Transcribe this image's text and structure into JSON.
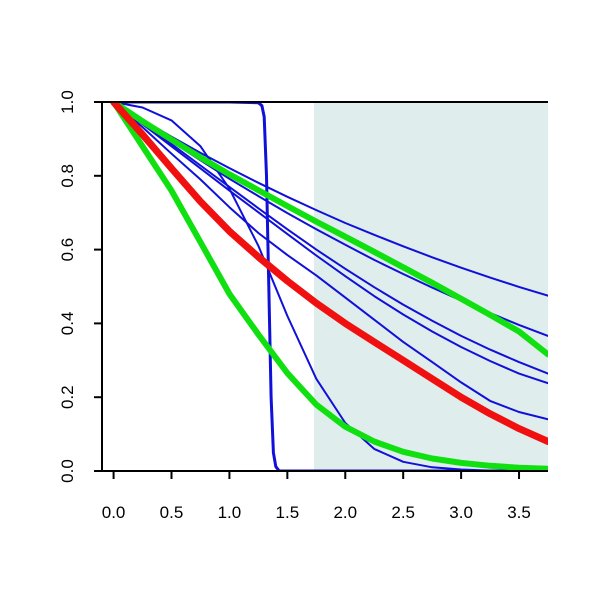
{
  "chart_data": {
    "type": "line",
    "title": "",
    "xlabel": "",
    "ylabel": "",
    "xlim": [
      -0.1,
      3.75
    ],
    "ylim": [
      0.0,
      1.0
    ],
    "grid": false,
    "shaded_region": {
      "x_from": 1.73,
      "x_to": 3.75,
      "color": "#e0eded"
    },
    "x_ticks": [
      "0.0",
      "0.5",
      "1.0",
      "1.5",
      "2.0",
      "2.5",
      "3.0",
      "3.5"
    ],
    "y_ticks": [
      "0.0",
      "0.2",
      "0.4",
      "0.6",
      "0.8",
      "1.0"
    ],
    "series": [
      {
        "color": "#1010d8",
        "width": 2,
        "points": [
          [
            0,
            1.0
          ],
          [
            0.25,
            0.952
          ],
          [
            0.5,
            0.906
          ],
          [
            0.75,
            0.862
          ],
          [
            1.0,
            0.821
          ],
          [
            1.25,
            0.781
          ],
          [
            1.5,
            0.743
          ],
          [
            1.75,
            0.707
          ],
          [
            2.0,
            0.672
          ],
          [
            2.25,
            0.64
          ],
          [
            2.5,
            0.609
          ],
          [
            2.75,
            0.579
          ],
          [
            3.0,
            0.551
          ],
          [
            3.25,
            0.524
          ],
          [
            3.5,
            0.499
          ],
          [
            3.75,
            0.475
          ]
        ]
      },
      {
        "color": "#1010d8",
        "width": 2,
        "points": [
          [
            0,
            1.0
          ],
          [
            0.25,
            0.946
          ],
          [
            0.5,
            0.893
          ],
          [
            0.75,
            0.842
          ],
          [
            1.0,
            0.792
          ],
          [
            1.25,
            0.745
          ],
          [
            1.5,
            0.699
          ],
          [
            1.75,
            0.655
          ],
          [
            2.0,
            0.613
          ],
          [
            2.25,
            0.572
          ],
          [
            2.5,
            0.534
          ],
          [
            2.75,
            0.497
          ],
          [
            3.0,
            0.462
          ],
          [
            3.25,
            0.428
          ],
          [
            3.5,
            0.396
          ],
          [
            3.75,
            0.366
          ]
        ]
      },
      {
        "color": "#1010d8",
        "width": 2,
        "points": [
          [
            0,
            1.0
          ],
          [
            0.25,
            0.942
          ],
          [
            0.5,
            0.886
          ],
          [
            0.75,
            0.828
          ],
          [
            1.0,
            0.77
          ],
          [
            1.25,
            0.712
          ],
          [
            1.5,
            0.655
          ],
          [
            1.75,
            0.6
          ],
          [
            2.0,
            0.548
          ],
          [
            2.25,
            0.498
          ],
          [
            2.5,
            0.451
          ],
          [
            2.75,
            0.407
          ],
          [
            3.0,
            0.366
          ],
          [
            3.25,
            0.329
          ],
          [
            3.5,
            0.295
          ],
          [
            3.75,
            0.264
          ]
        ]
      },
      {
        "color": "#1010d8",
        "width": 2,
        "points": [
          [
            0,
            1.0
          ],
          [
            0.25,
            0.94
          ],
          [
            0.5,
            0.88
          ],
          [
            0.75,
            0.82
          ],
          [
            1.0,
            0.76
          ],
          [
            1.25,
            0.701
          ],
          [
            1.5,
            0.642
          ],
          [
            1.75,
            0.584
          ],
          [
            2.0,
            0.528
          ],
          [
            2.25,
            0.474
          ],
          [
            2.5,
            0.424
          ],
          [
            2.75,
            0.378
          ],
          [
            3.0,
            0.336
          ],
          [
            3.25,
            0.298
          ],
          [
            3.5,
            0.264
          ],
          [
            3.75,
            0.238
          ]
        ]
      },
      {
        "color": "#1010d8",
        "width": 2,
        "points": [
          [
            0,
            1.0
          ],
          [
            0.25,
            0.932
          ],
          [
            0.5,
            0.86
          ],
          [
            0.75,
            0.79
          ],
          [
            1.0,
            0.715
          ],
          [
            1.25,
            0.645
          ],
          [
            1.5,
            0.585
          ],
          [
            1.75,
            0.53
          ],
          [
            2.0,
            0.47
          ],
          [
            2.25,
            0.41
          ],
          [
            2.5,
            0.35
          ],
          [
            2.75,
            0.295
          ],
          [
            3.0,
            0.24
          ],
          [
            3.25,
            0.19
          ],
          [
            3.5,
            0.16
          ],
          [
            3.75,
            0.14
          ]
        ]
      },
      {
        "color": "#1010d8",
        "width": 2,
        "points": [
          [
            0,
            1.0
          ],
          [
            0.25,
            0.985
          ],
          [
            0.5,
            0.95
          ],
          [
            0.75,
            0.88
          ],
          [
            1.0,
            0.765
          ],
          [
            1.25,
            0.61
          ],
          [
            1.5,
            0.42
          ],
          [
            1.75,
            0.25
          ],
          [
            2.0,
            0.13
          ],
          [
            2.25,
            0.06
          ],
          [
            2.5,
            0.025
          ],
          [
            2.75,
            0.01
          ],
          [
            3.0,
            0.004
          ],
          [
            3.25,
            0.001
          ],
          [
            3.5,
            0.0
          ],
          [
            3.75,
            0.0
          ]
        ]
      },
      {
        "color": "#1010d8",
        "width": 3,
        "points": [
          [
            0,
            1.0
          ],
          [
            1.0,
            1.0
          ],
          [
            1.25,
            0.998
          ],
          [
            1.28,
            0.99
          ],
          [
            1.3,
            0.96
          ],
          [
            1.32,
            0.8
          ],
          [
            1.34,
            0.5
          ],
          [
            1.36,
            0.2
          ],
          [
            1.38,
            0.05
          ],
          [
            1.4,
            0.012
          ],
          [
            1.43,
            0.0
          ],
          [
            3.75,
            0.0
          ]
        ]
      },
      {
        "color": "#10e010",
        "width": 6,
        "points": [
          [
            0,
            1.0
          ],
          [
            0.25,
            0.948
          ],
          [
            0.5,
            0.898
          ],
          [
            0.75,
            0.85
          ],
          [
            1.0,
            0.804
          ],
          [
            1.25,
            0.761
          ],
          [
            1.5,
            0.718
          ],
          [
            1.75,
            0.676
          ],
          [
            2.0,
            0.635
          ],
          [
            2.25,
            0.594
          ],
          [
            2.5,
            0.552
          ],
          [
            2.75,
            0.51
          ],
          [
            3.0,
            0.467
          ],
          [
            3.25,
            0.423
          ],
          [
            3.5,
            0.378
          ],
          [
            3.75,
            0.316
          ]
        ]
      },
      {
        "color": "#10e010",
        "width": 6,
        "points": [
          [
            0,
            1.0
          ],
          [
            0.25,
            0.88
          ],
          [
            0.5,
            0.76
          ],
          [
            0.75,
            0.62
          ],
          [
            1.0,
            0.48
          ],
          [
            1.25,
            0.37
          ],
          [
            1.5,
            0.265
          ],
          [
            1.75,
            0.18
          ],
          [
            2.0,
            0.12
          ],
          [
            2.25,
            0.08
          ],
          [
            2.5,
            0.052
          ],
          [
            2.75,
            0.034
          ],
          [
            3.0,
            0.022
          ],
          [
            3.25,
            0.014
          ],
          [
            3.5,
            0.009
          ],
          [
            3.75,
            0.006
          ]
        ]
      },
      {
        "color": "#f01010",
        "width": 7,
        "points": [
          [
            0,
            1.0
          ],
          [
            0.25,
            0.912
          ],
          [
            0.5,
            0.82
          ],
          [
            0.75,
            0.73
          ],
          [
            1.0,
            0.65
          ],
          [
            1.25,
            0.58
          ],
          [
            1.5,
            0.515
          ],
          [
            1.75,
            0.455
          ],
          [
            2.0,
            0.4
          ],
          [
            2.25,
            0.35
          ],
          [
            2.5,
            0.3
          ],
          [
            2.75,
            0.25
          ],
          [
            3.0,
            0.2
          ],
          [
            3.25,
            0.155
          ],
          [
            3.5,
            0.115
          ],
          [
            3.75,
            0.08
          ]
        ]
      }
    ]
  }
}
